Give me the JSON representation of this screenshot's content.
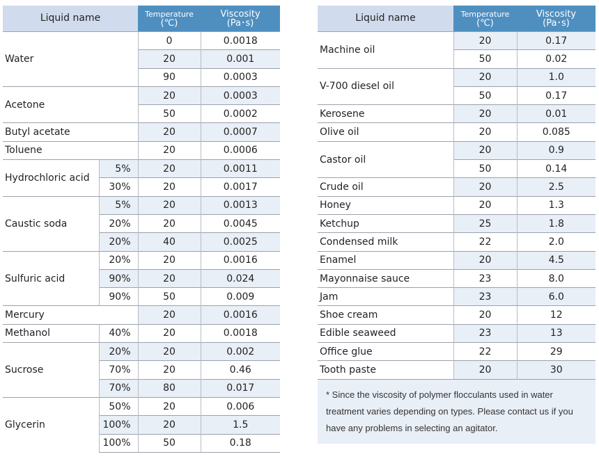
{
  "header": {
    "liquid_name": "Liquid name",
    "temperature_label": "Temperature",
    "temperature_unit": "(℃)",
    "viscosity_label": "Viscosity",
    "viscosity_unit": "(Pa･s)"
  },
  "left_groups": [
    {
      "name": "Water",
      "rows": [
        {
          "conc": "",
          "temp": "0",
          "visc": "0.0018"
        },
        {
          "conc": "",
          "temp": "20",
          "visc": "0.001"
        },
        {
          "conc": "",
          "temp": "90",
          "visc": "0.0003"
        }
      ]
    },
    {
      "name": "Acetone",
      "rows": [
        {
          "conc": "",
          "temp": "20",
          "visc": "0.0003"
        },
        {
          "conc": "",
          "temp": "50",
          "visc": "0.0002"
        }
      ]
    },
    {
      "name": "Butyl acetate",
      "rows": [
        {
          "conc": "",
          "temp": "20",
          "visc": "0.0007"
        }
      ]
    },
    {
      "name": "Toluene",
      "rows": [
        {
          "conc": "",
          "temp": "20",
          "visc": "0.0006"
        }
      ]
    },
    {
      "name": "Hydrochloric acid",
      "rows": [
        {
          "conc": "5%",
          "temp": "20",
          "visc": "0.0011"
        },
        {
          "conc": "30%",
          "temp": "20",
          "visc": "0.0017"
        }
      ]
    },
    {
      "name": "Caustic soda",
      "rows": [
        {
          "conc": "5%",
          "temp": "20",
          "visc": "0.0013"
        },
        {
          "conc": "20%",
          "temp": "20",
          "visc": "0.0045"
        },
        {
          "conc": "20%",
          "temp": "40",
          "visc": "0.0025"
        }
      ]
    },
    {
      "name": "Sulfuric acid",
      "rows": [
        {
          "conc": "20%",
          "temp": "20",
          "visc": "0.0016"
        },
        {
          "conc": "90%",
          "temp": "20",
          "visc": "0.024"
        },
        {
          "conc": "90%",
          "temp": "50",
          "visc": "0.009"
        }
      ]
    },
    {
      "name": "Mercury",
      "rows": [
        {
          "conc": "",
          "temp": "20",
          "visc": "0.0016"
        }
      ]
    },
    {
      "name": "Methanol",
      "rows": [
        {
          "conc": "40%",
          "temp": "20",
          "visc": "0.0018"
        }
      ]
    },
    {
      "name": "Sucrose",
      "rows": [
        {
          "conc": "20%",
          "temp": "20",
          "visc": "0.002"
        },
        {
          "conc": "70%",
          "temp": "20",
          "visc": "0.46"
        },
        {
          "conc": "70%",
          "temp": "80",
          "visc": "0.017"
        }
      ]
    },
    {
      "name": "Glycerin",
      "rows": [
        {
          "conc": "50%",
          "temp": "20",
          "visc": "0.006"
        },
        {
          "conc": "100%",
          "temp": "20",
          "visc": "1.5"
        },
        {
          "conc": "100%",
          "temp": "50",
          "visc": "0.18"
        }
      ]
    }
  ],
  "right_groups": [
    {
      "name": "Machine oil",
      "rows": [
        {
          "temp": "20",
          "visc": "0.17"
        },
        {
          "temp": "50",
          "visc": "0.02"
        }
      ]
    },
    {
      "name": "V-700 diesel oil",
      "rows": [
        {
          "temp": "20",
          "visc": "1.0"
        },
        {
          "temp": "50",
          "visc": "0.17"
        }
      ]
    },
    {
      "name": "Kerosene",
      "rows": [
        {
          "temp": "20",
          "visc": "0.01"
        }
      ]
    },
    {
      "name": "Olive oil",
      "rows": [
        {
          "temp": "20",
          "visc": "0.085"
        }
      ]
    },
    {
      "name": "Castor oil",
      "rows": [
        {
          "temp": "20",
          "visc": "0.9"
        },
        {
          "temp": "50",
          "visc": "0.14"
        }
      ]
    },
    {
      "name": "Crude oil",
      "rows": [
        {
          "temp": "20",
          "visc": "2.5"
        }
      ]
    },
    {
      "name": "Honey",
      "rows": [
        {
          "temp": "20",
          "visc": "1.3"
        }
      ]
    },
    {
      "name": "Ketchup",
      "rows": [
        {
          "temp": "25",
          "visc": "1.8"
        }
      ]
    },
    {
      "name": "Condensed milk",
      "rows": [
        {
          "temp": "22",
          "visc": "2.0"
        }
      ]
    },
    {
      "name": "Enamel",
      "rows": [
        {
          "temp": "20",
          "visc": "4.5"
        }
      ]
    },
    {
      "name": "Mayonnaise sauce",
      "rows": [
        {
          "temp": "23",
          "visc": "8.0"
        }
      ]
    },
    {
      "name": "Jam",
      "rows": [
        {
          "temp": "23",
          "visc": "6.0"
        }
      ]
    },
    {
      "name": "Shoe cream",
      "rows": [
        {
          "temp": "20",
          "visc": "12"
        }
      ]
    },
    {
      "name": "Edible seaweed",
      "rows": [
        {
          "temp": "23",
          "visc": "13"
        }
      ]
    },
    {
      "name": "Office glue",
      "rows": [
        {
          "temp": "22",
          "visc": "29"
        }
      ]
    },
    {
      "name": "Tooth paste",
      "rows": [
        {
          "temp": "20",
          "visc": "30"
        }
      ]
    }
  ],
  "note": "* Since the viscosity of polymer flocculants used in water treatment varies depending on types. Please contact us if you have any problems in selecting an agitator."
}
